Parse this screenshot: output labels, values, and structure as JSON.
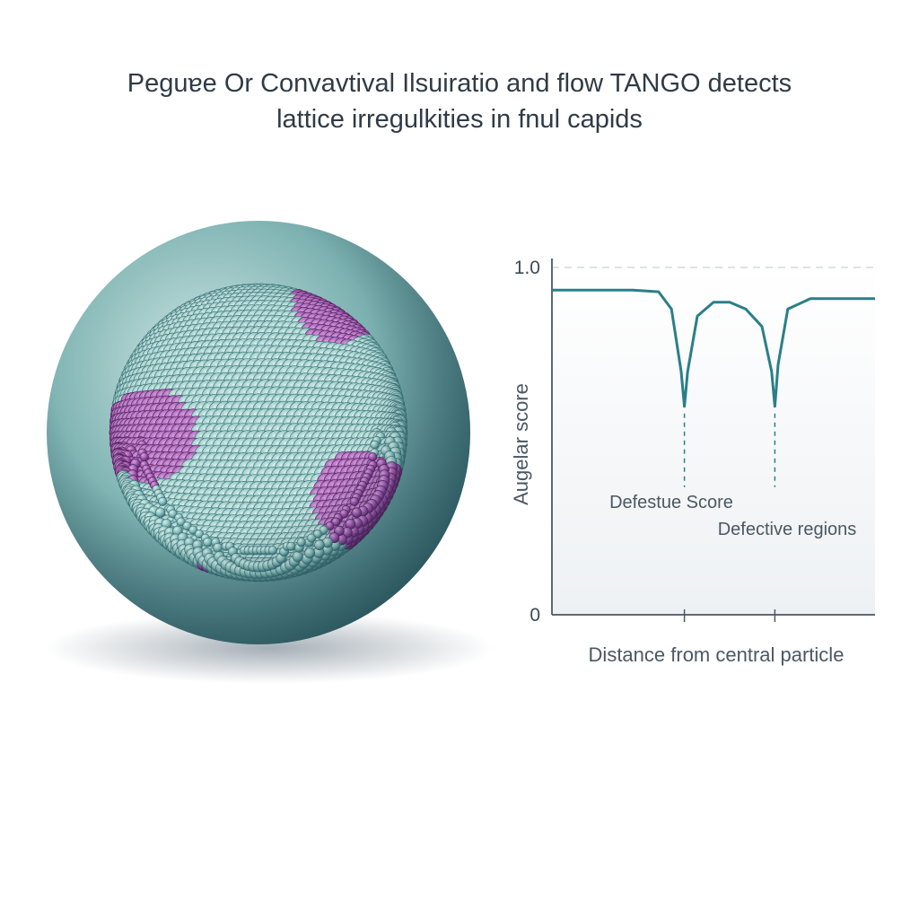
{
  "chart_data": {
    "type": "line",
    "title_lines": [
      "Peguɐe Or Convavtival Ilsuiratio and flow TANGO detects",
      "lattice irregulkities in fnul capids"
    ],
    "x_label": "Distance from central particle",
    "y_label": "Augelar score",
    "annotations": [
      "Defestue Score",
      "Defective regions"
    ],
    "x": [
      0,
      0.25,
      0.33,
      0.37,
      0.4,
      0.41,
      0.42,
      0.45,
      0.5,
      0.55,
      0.6,
      0.65,
      0.68,
      0.69,
      0.7,
      0.73,
      0.8,
      1.0
    ],
    "series": [
      {
        "color": "#2a7f88",
        "values": [
          0.935,
          0.935,
          0.93,
          0.88,
          0.7,
          0.6,
          0.7,
          0.86,
          0.9,
          0.9,
          0.88,
          0.83,
          0.7,
          0.6,
          0.72,
          0.88,
          0.91,
          0.91
        ]
      }
    ],
    "xlim": [
      0,
      1
    ],
    "xticks": [
      0.41,
      0.69
    ],
    "ylim": [
      0,
      1
    ],
    "yticks": [
      0,
      {
        "value": 1,
        "label": "1.0"
      }
    ],
    "grid": true
  }
}
